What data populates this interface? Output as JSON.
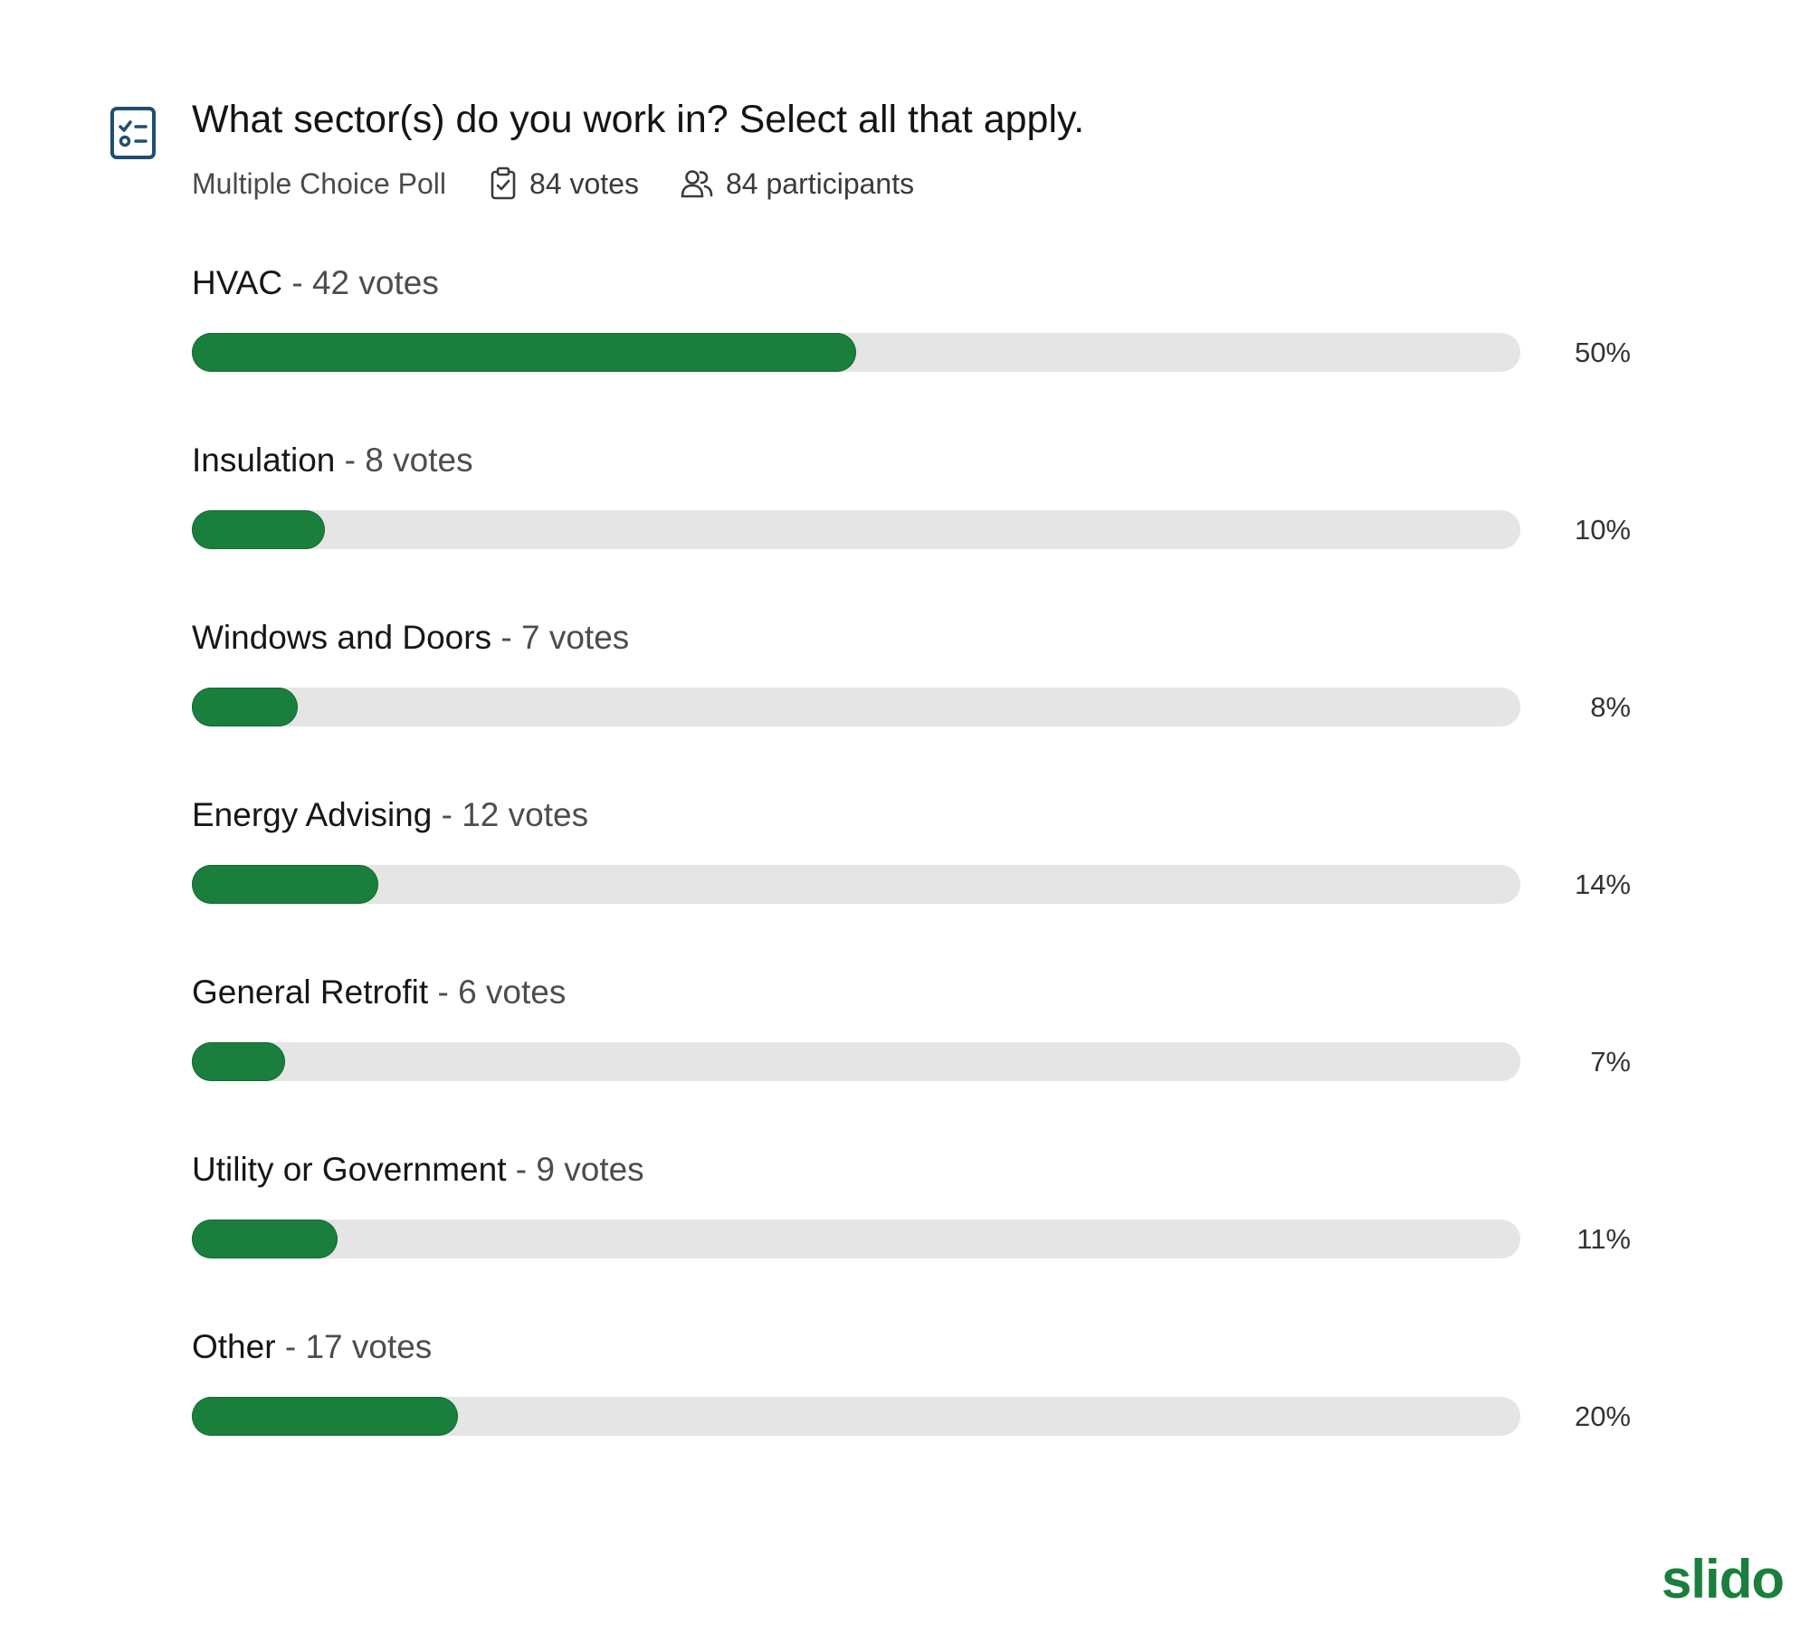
{
  "poll": {
    "question": "What sector(s) do you work in? Select all that apply.",
    "type_label": "Multiple Choice Poll",
    "votes_label": "84 votes",
    "participants_label": "84 participants"
  },
  "icons": {
    "poll": "checklist-icon",
    "votes": "clipboard-check-icon",
    "participants": "users-icon"
  },
  "colors": {
    "accent": "#1a7f3c",
    "track": "#e5e5e5"
  },
  "options": [
    {
      "name": "HVAC",
      "separator": " - ",
      "votes_text": "42 votes",
      "percent_text": "50%",
      "percent": 50
    },
    {
      "name": "Insulation",
      "separator": " - ",
      "votes_text": "8 votes",
      "percent_text": "10%",
      "percent": 10
    },
    {
      "name": "Windows and Doors",
      "separator": " - ",
      "votes_text": "7 votes",
      "percent_text": "8%",
      "percent": 8
    },
    {
      "name": "Energy Advising",
      "separator": " - ",
      "votes_text": "12 votes",
      "percent_text": "14%",
      "percent": 14
    },
    {
      "name": "General Retrofit",
      "separator": " - ",
      "votes_text": "6 votes",
      "percent_text": "7%",
      "percent": 7
    },
    {
      "name": "Utility or Government",
      "separator": " - ",
      "votes_text": "9 votes",
      "percent_text": "11%",
      "percent": 11
    },
    {
      "name": "Other",
      "separator": " - ",
      "votes_text": "17 votes",
      "percent_text": "20%",
      "percent": 20
    }
  ],
  "brand": {
    "name": "slido"
  }
}
